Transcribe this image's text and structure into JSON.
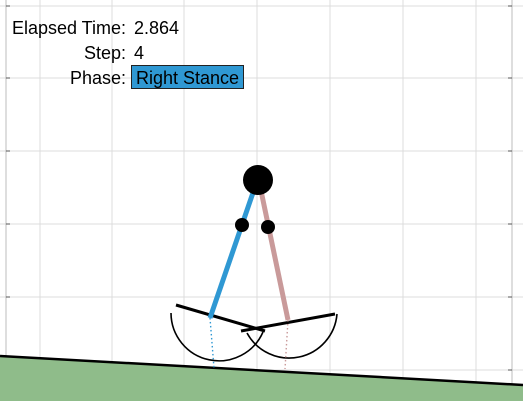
{
  "hud": {
    "elapsed_label": "Elapsed Time:",
    "elapsed_value": "2.864",
    "step_label": "Step:",
    "step_value": "4",
    "phase_label": "Phase:",
    "phase_value": "Right Stance",
    "phase_color": "#2f98d3"
  },
  "colors": {
    "grid": "#dcdcdc",
    "axes_frame": "#000000",
    "ground_fill": "#8fbc8a",
    "ground_edge": "#000000",
    "left_leg": "#2f98d3",
    "right_leg": "#c99a9a",
    "body": "#000000",
    "feet": "#000000"
  }
}
